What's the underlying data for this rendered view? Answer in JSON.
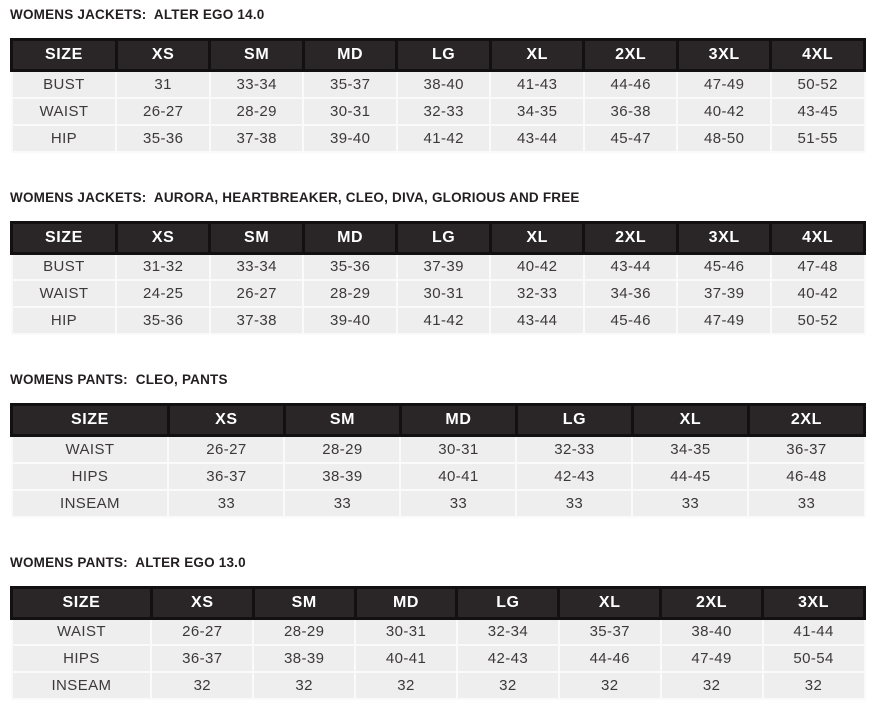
{
  "colors": {
    "header_bg": "#2a2627",
    "header_separator": "#121011",
    "header_text": "#ffffff",
    "row_bg": "#eeeeee",
    "row_separator": "#fafafa",
    "title_text": "#231f20",
    "cell_text": "#3d393a"
  },
  "tables": [
    {
      "title": "WOMENS JACKETS:  ALTER EGO 14.0",
      "columns": [
        "SIZE",
        "XS",
        "SM",
        "MD",
        "LG",
        "XL",
        "2XL",
        "3XL",
        "4XL"
      ],
      "rows": [
        {
          "label": "BUST",
          "values": [
            "31",
            "33-34",
            "35-37",
            "38-40",
            "41-43",
            "44-46",
            "47-49",
            "50-52"
          ]
        },
        {
          "label": "WAIST",
          "values": [
            "26-27",
            "28-29",
            "30-31",
            "32-33",
            "34-35",
            "36-38",
            "40-42",
            "43-45"
          ]
        },
        {
          "label": "HIP",
          "values": [
            "35-36",
            "37-38",
            "39-40",
            "41-42",
            "43-44",
            "45-47",
            "48-50",
            "51-55"
          ]
        }
      ]
    },
    {
      "title": "WOMENS JACKETS:  AURORA, HEARTBREAKER, CLEO, DIVA, GLORIOUS AND FREE",
      "columns": [
        "SIZE",
        "XS",
        "SM",
        "MD",
        "LG",
        "XL",
        "2XL",
        "3XL",
        "4XL"
      ],
      "rows": [
        {
          "label": "BUST",
          "values": [
            "31-32",
            "33-34",
            "35-36",
            "37-39",
            "40-42",
            "43-44",
            "45-46",
            "47-48"
          ]
        },
        {
          "label": "WAIST",
          "values": [
            "24-25",
            "26-27",
            "28-29",
            "30-31",
            "32-33",
            "34-36",
            "37-39",
            "40-42"
          ]
        },
        {
          "label": "HIP",
          "values": [
            "35-36",
            "37-38",
            "39-40",
            "41-42",
            "43-44",
            "45-46",
            "47-49",
            "50-52"
          ]
        }
      ]
    },
    {
      "title": "WOMENS PANTS:  CLEO, PANTS",
      "columns": [
        "SIZE",
        "XS",
        "SM",
        "MD",
        "LG",
        "XL",
        "2XL"
      ],
      "rows": [
        {
          "label": "WAIST",
          "values": [
            "26-27",
            "28-29",
            "30-31",
            "32-33",
            "34-35",
            "36-37"
          ]
        },
        {
          "label": "HIPS",
          "values": [
            "36-37",
            "38-39",
            "40-41",
            "42-43",
            "44-45",
            "46-48"
          ]
        },
        {
          "label": "INSEAM",
          "values": [
            "33",
            "33",
            "33",
            "33",
            "33",
            "33"
          ]
        }
      ]
    },
    {
      "title": "WOMENS PANTS:  ALTER EGO 13.0",
      "columns": [
        "SIZE",
        "XS",
        "SM",
        "MD",
        "LG",
        "XL",
        "2XL",
        "3XL"
      ],
      "rows": [
        {
          "label": "WAIST",
          "values": [
            "26-27",
            "28-29",
            "30-31",
            "32-34",
            "35-37",
            "38-40",
            "41-44"
          ]
        },
        {
          "label": "HIPS",
          "values": [
            "36-37",
            "38-39",
            "40-41",
            "42-43",
            "44-46",
            "47-49",
            "50-54"
          ]
        },
        {
          "label": "INSEAM",
          "values": [
            "32",
            "32",
            "32",
            "32",
            "32",
            "32",
            "32"
          ]
        }
      ]
    }
  ]
}
